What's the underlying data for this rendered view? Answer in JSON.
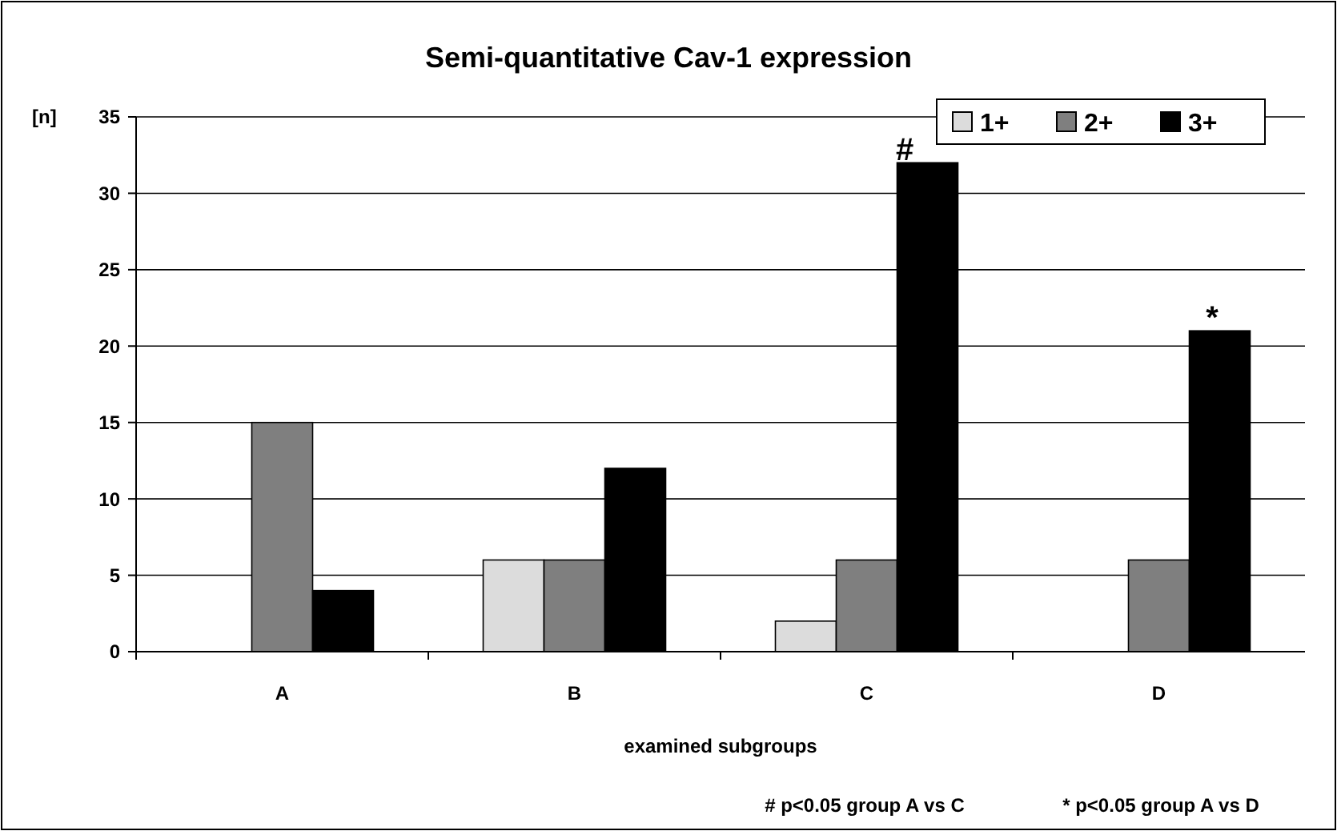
{
  "chart_data": {
    "type": "bar",
    "title": "Semi-quantitative Cav-1 expression",
    "xlabel": "examined subgroups",
    "ylabel": "[n]",
    "categories": [
      "A",
      "B",
      "C",
      "D"
    ],
    "series": [
      {
        "name": "1+",
        "color": "#dcdcdc",
        "values": [
          0,
          6,
          2,
          0
        ]
      },
      {
        "name": "2+",
        "color": "#7f7f7f",
        "values": [
          15,
          6,
          6,
          6
        ]
      },
      {
        "name": "3+",
        "color": "#000000",
        "values": [
          4,
          12,
          32,
          21
        ]
      }
    ],
    "ylim": [
      0,
      35
    ],
    "yticks": [
      0,
      5,
      10,
      15,
      20,
      25,
      30,
      35
    ],
    "grid": "y",
    "legend": "top right",
    "annotations": [
      "#",
      "*",
      "# p<0.05 group A vs C",
      "* p<0.05 group A vs D"
    ]
  }
}
